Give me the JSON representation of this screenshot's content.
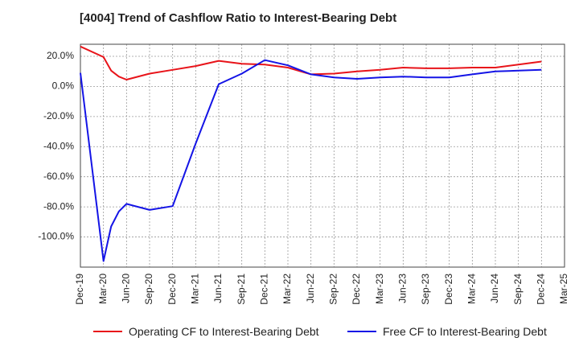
{
  "chart_data": {
    "type": "line",
    "title": "[4004]  Trend of Cashflow Ratio to Interest-Bearing Debt",
    "x_ticks": [
      "Dec-19",
      "Mar-20",
      "Jun-20",
      "Sep-20",
      "Dec-20",
      "Mar-21",
      "Jun-21",
      "Sep-21",
      "Dec-21",
      "Mar-22",
      "Jun-22",
      "Sep-22",
      "Dec-22",
      "Mar-23",
      "Jun-23",
      "Sep-23",
      "Dec-23",
      "Mar-24",
      "Jun-24",
      "Sep-24",
      "Dec-24",
      "Mar-25"
    ],
    "y_ticks": [
      "20.0%",
      "0.0%",
      "-20.0%",
      "-40.0%",
      "-60.0%",
      "-80.0%",
      "-100.0%"
    ],
    "y_tick_values": [
      20,
      0,
      -20,
      -40,
      -60,
      -80,
      -100
    ],
    "ylim": [
      -120,
      28
    ],
    "grid": true,
    "legend_position": "bottom",
    "series": [
      {
        "name": "Operating CF to Interest-Bearing Debt",
        "color": "#e8141a",
        "x": [
          "Dec-19",
          "Mar-20",
          "Apr-20",
          "May-20",
          "Jun-20",
          "Sep-20",
          "Dec-20",
          "Mar-21",
          "Jun-21",
          "Sep-21",
          "Dec-21",
          "Mar-22",
          "Jun-22",
          "Sep-22",
          "Dec-22",
          "Mar-23",
          "Jun-23",
          "Sep-23",
          "Dec-23",
          "Mar-24",
          "Jun-24",
          "Sep-24",
          "Dec-24"
        ],
        "values": [
          26.5,
          19.5,
          10.5,
          6.5,
          4.5,
          8.5,
          11.0,
          13.5,
          17.0,
          15.0,
          14.5,
          12.5,
          8.0,
          8.5,
          10.0,
          11.0,
          12.5,
          12.0,
          12.0,
          12.5,
          12.5,
          14.5,
          16.5
        ]
      },
      {
        "name": "Free CF to Interest-Bearing Debt",
        "color": "#1414e6",
        "x": [
          "Dec-19",
          "Mar-20",
          "Apr-20",
          "May-20",
          "Jun-20",
          "Sep-20",
          "Dec-20",
          "Mar-21",
          "Jun-21",
          "Sep-21",
          "Dec-21",
          "Mar-22",
          "Jun-22",
          "Sep-22",
          "Dec-22",
          "Mar-23",
          "Jun-23",
          "Sep-23",
          "Dec-23",
          "Mar-24",
          "Jun-24",
          "Sep-24",
          "Dec-24"
        ],
        "values": [
          9.0,
          -116.0,
          -93.0,
          -83.0,
          -78.0,
          -82.0,
          -79.5,
          -38.0,
          1.5,
          8.5,
          17.5,
          14.0,
          8.0,
          6.0,
          5.0,
          6.0,
          6.5,
          6.0,
          6.0,
          8.0,
          10.0,
          10.5,
          11.0
        ]
      }
    ]
  }
}
